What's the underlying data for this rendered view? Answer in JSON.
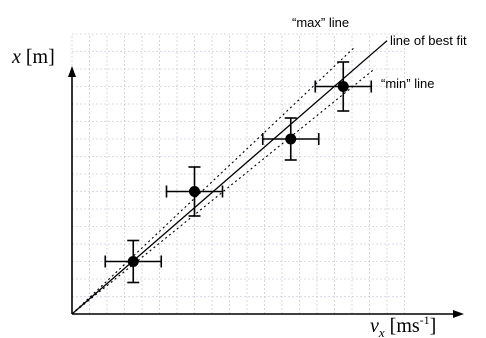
{
  "chart_data": {
    "type": "scatter",
    "title": "",
    "xlabel": "v_x [ms^-1]",
    "ylabel": "x [m]",
    "xlabel_parts": {
      "var": "v",
      "sub": "x",
      "unit_open": " [ms",
      "sup": "-1",
      "unit_close": "]"
    },
    "ylabel_parts": {
      "var": "x",
      "unit": " [m]"
    },
    "xlim": [
      0,
      19
    ],
    "ylim": [
      0,
      16
    ],
    "grid": true,
    "tick_labels": false,
    "points": [
      {
        "x": 3.5,
        "y": 3.0,
        "xerr": 1.6,
        "yerr": 1.2
      },
      {
        "x": 7.0,
        "y": 7.0,
        "xerr": 1.6,
        "yerr": 1.4
      },
      {
        "x": 12.5,
        "y": 10.0,
        "xerr": 1.6,
        "yerr": 1.2
      },
      {
        "x": 15.5,
        "y": 13.0,
        "xerr": 1.6,
        "yerr": 1.4
      }
    ],
    "lines": [
      {
        "label": "line of best fit",
        "style": "solid",
        "slope": 0.8675
      },
      {
        "label": "“max” line",
        "style": "dotted",
        "slope": 0.944
      },
      {
        "label": "“min” line",
        "style": "dotted",
        "slope": 0.81
      }
    ]
  }
}
